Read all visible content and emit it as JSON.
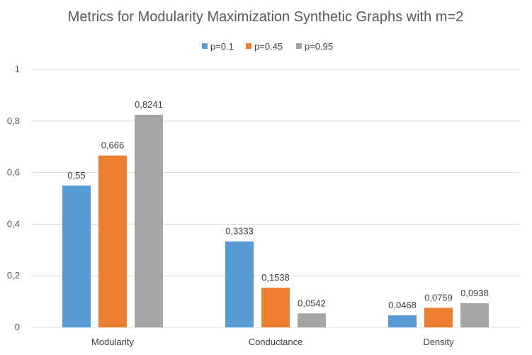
{
  "chart_data": {
    "type": "bar",
    "title": "Metrics for Modularity Maximization Synthetic Graphs with m=2",
    "categories": [
      "Modularity",
      "Conductance",
      "Density"
    ],
    "series": [
      {
        "name": "p=0.1",
        "color": "#5b9bd5",
        "values": [
          0.55,
          0.3333,
          0.0468
        ],
        "labels": [
          "0,55",
          "0,3333",
          "0,0468"
        ]
      },
      {
        "name": "p=0.45",
        "color": "#ed7d31",
        "values": [
          0.666,
          0.1538,
          0.0759
        ],
        "labels": [
          "0,666",
          "0,1538",
          "0,0759"
        ]
      },
      {
        "name": "p=0.95",
        "color": "#a5a5a5",
        "values": [
          0.8241,
          0.0542,
          0.0938
        ],
        "labels": [
          "0,8241",
          "0,0542",
          "0,0938"
        ]
      }
    ],
    "yticks": [
      "0",
      "0,2",
      "0,4",
      "0,6",
      "0,8",
      "1"
    ],
    "ylim": [
      0,
      1
    ],
    "xlabel": "",
    "ylabel": "",
    "grid": true,
    "legend_position": "top"
  }
}
